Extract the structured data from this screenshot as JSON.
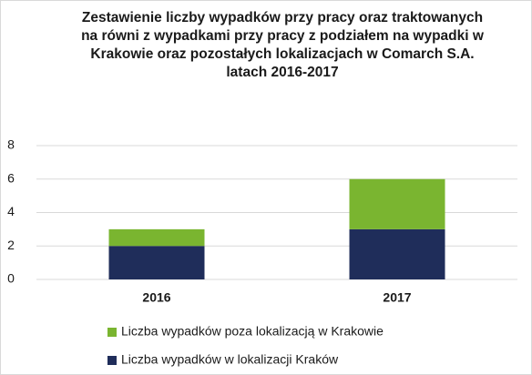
{
  "chart_data": {
    "type": "stacked_bar",
    "title": "Zestawienie liczby wypadków przy pracy oraz traktowanych na równi z wypadkami przy pracy z podziałem na wypadki w Krakowie oraz pozostałych lokalizacjach w Comarch S.A. latach 2016-2017",
    "categories": [
      "2016",
      "2017"
    ],
    "series": [
      {
        "name": "Liczba wypadków w lokalizacji Kraków",
        "color": "#1f2d5a",
        "values": [
          2,
          3
        ]
      },
      {
        "name": "Liczba wypadków poza lokalizacją w Krakowie",
        "color": "#7ab530",
        "values": [
          1,
          3
        ]
      }
    ],
    "ylim": [
      0,
      8
    ],
    "yticks": [
      0,
      2,
      4,
      6,
      8
    ],
    "grid": true,
    "legend": "bottom"
  }
}
